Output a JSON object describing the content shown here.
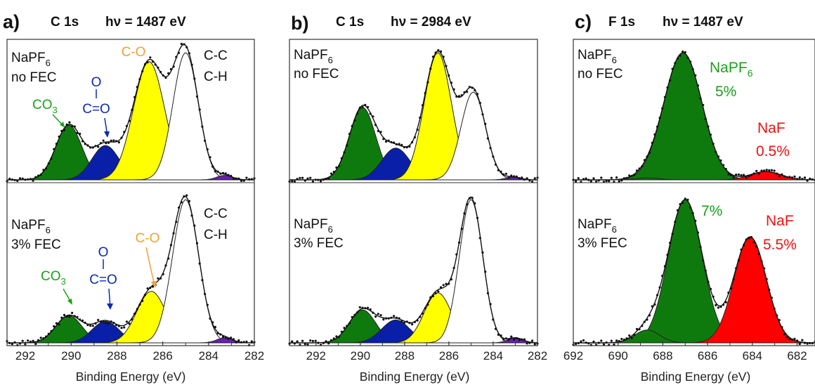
{
  "xlabel": "Binding Energy (eV)",
  "colors": {
    "CO3": "#0e7a0e",
    "OCO": "#0a1fa8",
    "CO": "#ffff00",
    "CC": "#ffffff",
    "purple": "#6a1fb0",
    "NaPF6_peak": "#0e7a0e",
    "NaF_peak": "#ff0000",
    "label_green": "#1aa01a",
    "label_blue": "#0a2ab4",
    "label_orange": "#f2a03a",
    "label_red": "#ee1111"
  },
  "chart_data": [
    {
      "type": "area",
      "panel_letter": "a)",
      "header_core": "C 1s",
      "header_energy": "hν = 1487 eV",
      "xlabel": "Binding Energy (eV)",
      "xlim": [
        292.8,
        282
      ],
      "x_reversed": true,
      "ticks": [
        "292",
        "290",
        "288",
        "286",
        "284",
        "282"
      ],
      "tick_values": [
        292,
        290,
        288,
        286,
        284,
        282
      ],
      "subplots": [
        {
          "sample_line1": "NaPF6",
          "sample_line2": "no FEC",
          "ylim": [
            0,
            1.05
          ],
          "components": [
            {
              "name": "CO3",
              "label": "CO3",
              "center": 290.1,
              "fwhm": 1.35,
              "height": 0.43,
              "color": "#0e7a0e"
            },
            {
              "name": "O-C=O",
              "label": "O–C=O",
              "center": 288.5,
              "fwhm": 1.4,
              "height": 0.27,
              "color": "#0a1fa8"
            },
            {
              "name": "C-O",
              "label": "C-O",
              "center": 286.6,
              "fwhm": 1.6,
              "height": 0.93,
              "color": "#ffff00"
            },
            {
              "name": "C-C C-H",
              "label": "C-C C-H",
              "center": 285.0,
              "fwhm": 1.3,
              "height": 1.0,
              "color": "#ffffff"
            },
            {
              "name": "minor",
              "label": "",
              "center": 283.3,
              "fwhm": 0.8,
              "height": 0.035,
              "color": "#6a1fb0"
            }
          ]
        },
        {
          "sample_line1": "NaPF6",
          "sample_line2": "3% FEC",
          "ylim": [
            0,
            1.05
          ],
          "components": [
            {
              "name": "CO3",
              "label": "CO3",
              "center": 290.1,
              "fwhm": 1.35,
              "height": 0.19,
              "color": "#0e7a0e"
            },
            {
              "name": "O-C=O",
              "label": "O–C=O",
              "center": 288.5,
              "fwhm": 1.4,
              "height": 0.15,
              "color": "#0a1fa8"
            },
            {
              "name": "C-O",
              "label": "C-O",
              "center": 286.5,
              "fwhm": 1.5,
              "height": 0.36,
              "color": "#ffff00"
            },
            {
              "name": "C-C C-H",
              "label": "C-C C-H",
              "center": 285.0,
              "fwhm": 1.35,
              "height": 1.0,
              "color": "#ffffff"
            },
            {
              "name": "minor",
              "label": "",
              "center": 283.3,
              "fwhm": 0.8,
              "height": 0.035,
              "color": "#6a1fb0"
            }
          ]
        }
      ],
      "annotations": {
        "co3": "CO3",
        "o_top": "O",
        "c_eq_o": "C=O",
        "c_o": "C-O",
        "cc": "C-C",
        "ch": "C-H"
      }
    },
    {
      "type": "area",
      "panel_letter": "b)",
      "header_core": "C 1s",
      "header_energy": "hν = 2984 eV",
      "xlabel": "Binding Energy (eV)",
      "xlim": [
        293.2,
        282
      ],
      "x_reversed": true,
      "ticks": [
        "292",
        "290",
        "288",
        "286",
        "284",
        "282"
      ],
      "tick_values": [
        292,
        290,
        288,
        286,
        284,
        282
      ],
      "subplots": [
        {
          "sample_line1": "NaPF6",
          "sample_line2": "no FEC",
          "ylim": [
            0,
            1.05
          ],
          "components": [
            {
              "name": "CO3",
              "label": "",
              "center": 289.9,
              "fwhm": 1.4,
              "height": 0.57,
              "color": "#0e7a0e"
            },
            {
              "name": "O-C=O",
              "label": "",
              "center": 288.4,
              "fwhm": 1.5,
              "height": 0.25,
              "color": "#0a1fa8"
            },
            {
              "name": "C-O",
              "label": "",
              "center": 286.5,
              "fwhm": 1.45,
              "height": 1.0,
              "color": "#ffff00"
            },
            {
              "name": "C-C C-H",
              "label": "",
              "center": 284.9,
              "fwhm": 1.3,
              "height": 0.69,
              "color": "#ffffff"
            },
            {
              "name": "minor",
              "label": "",
              "center": 283.1,
              "fwhm": 0.8,
              "height": 0.02,
              "color": "#6a1fb0"
            }
          ]
        },
        {
          "sample_line1": "NaPF6",
          "sample_line2": "3% FEC",
          "ylim": [
            0,
            1.05
          ],
          "components": [
            {
              "name": "CO3",
              "label": "",
              "center": 289.9,
              "fwhm": 1.4,
              "height": 0.23,
              "color": "#0e7a0e"
            },
            {
              "name": "O-C=O",
              "label": "",
              "center": 288.4,
              "fwhm": 1.5,
              "height": 0.16,
              "color": "#0a1fa8"
            },
            {
              "name": "C-O",
              "label": "",
              "center": 286.5,
              "fwhm": 1.45,
              "height": 0.35,
              "color": "#ffff00"
            },
            {
              "name": "C-C C-H",
              "label": "",
              "center": 285.0,
              "fwhm": 1.25,
              "height": 1.0,
              "color": "#ffffff"
            },
            {
              "name": "minor",
              "label": "",
              "center": 283.0,
              "fwhm": 0.8,
              "height": 0.035,
              "color": "#6a1fb0"
            }
          ]
        }
      ],
      "annotations": {}
    },
    {
      "type": "area",
      "panel_letter": "c)",
      "header_core": "F 1s",
      "header_energy": "hν = 1487 eV",
      "xlabel": "Binding Energy (eV)",
      "xlim": [
        692,
        681.2
      ],
      "x_reversed": true,
      "ticks": [
        "692",
        "690",
        "688",
        "686",
        "684",
        "682"
      ],
      "tick_values": [
        692,
        690,
        688,
        686,
        684,
        682
      ],
      "subplots": [
        {
          "sample_line1": "NaPF6",
          "sample_line2": "no FEC",
          "ylim": [
            0,
            1.05
          ],
          "components": [
            {
              "name": "NaPF6",
              "label": "NaPF6 5%",
              "center": 687.1,
              "fwhm": 2.0,
              "height": 1.0,
              "color": "#0e7a0e"
            },
            {
              "name": "NaF",
              "label": "NaF 0.5%",
              "center": 683.4,
              "fwhm": 1.6,
              "height": 0.065,
              "color": "#ff0000"
            },
            {
              "name": "minor",
              "label": "",
              "center": 688.7,
              "fwhm": 1.2,
              "height": 0.015,
              "color": "#0e7a0e"
            }
          ]
        },
        {
          "sample_line1": "NaPF6",
          "sample_line2": "3% FEC",
          "ylim": [
            0,
            1.05
          ],
          "components": [
            {
              "name": "NaPF6",
              "label": "7%",
              "center": 687.0,
              "fwhm": 1.8,
              "height": 1.0,
              "color": "#0e7a0e"
            },
            {
              "name": "NaF",
              "label": "NaF 5.5%",
              "center": 684.1,
              "fwhm": 1.7,
              "height": 0.74,
              "color": "#ff0000"
            },
            {
              "name": "minor",
              "label": "",
              "center": 688.7,
              "fwhm": 1.3,
              "height": 0.09,
              "color": "#0e7a0e"
            }
          ]
        }
      ],
      "annotations": {
        "napf6": "NaPF",
        "pct_5": "5%",
        "naf": "NaF",
        "pct_05": "0.5%",
        "pct_7": "7%",
        "pct_55": "5.5%"
      }
    }
  ]
}
